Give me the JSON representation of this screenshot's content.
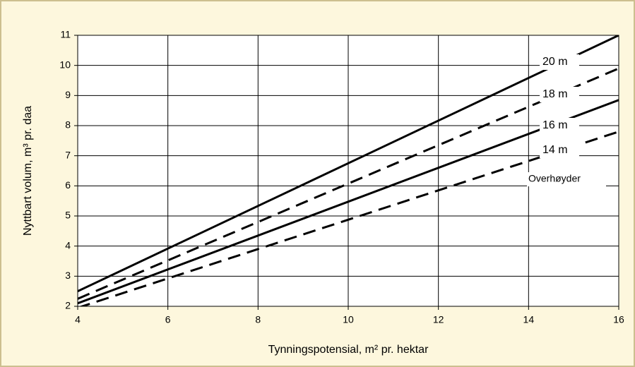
{
  "chart_data": {
    "type": "line",
    "x_label": "Tynningspotensial, m² pr. hektar",
    "y_label": "Nyttbart volum, m³ pr. daa",
    "legend_title": "Overhøyder",
    "x": [
      4,
      16
    ],
    "series": [
      {
        "name": "20 m",
        "color": "#000000",
        "style": "solid",
        "values": [
          2.5,
          11
        ]
      },
      {
        "name": "18 m",
        "color": "#000000",
        "style": "dashed",
        "values": [
          2.25,
          9.9
        ]
      },
      {
        "name": "16 m",
        "color": "#000000",
        "style": "solid",
        "values": [
          2.1,
          8.85
        ]
      },
      {
        "name": "14 m",
        "color": "#000000",
        "style": "dashed",
        "values": [
          1.95,
          7.8
        ]
      }
    ],
    "xlim": [
      4,
      16
    ],
    "xticks": [
      4,
      6,
      8,
      10,
      12,
      14,
      16
    ],
    "ylim": [
      2,
      11
    ],
    "yticks": [
      2,
      3,
      4,
      5,
      6,
      7,
      8,
      9,
      10,
      11
    ],
    "grid": true
  }
}
